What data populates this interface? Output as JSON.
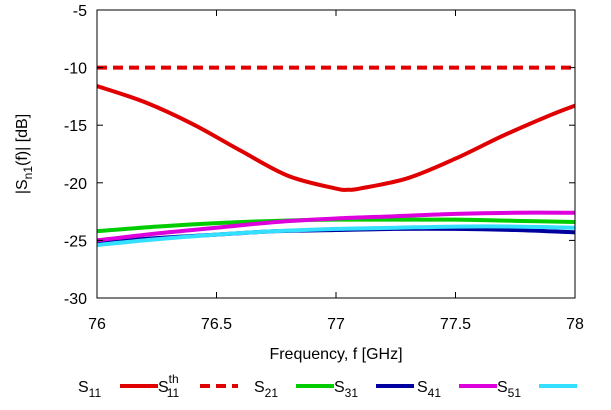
{
  "chart_data": {
    "type": "line",
    "title": "",
    "xlabel": "Frequency, f [GHz]",
    "ylabel": {
      "base": "|S",
      "sub": "n1",
      "rest": "(f)| [dB]"
    },
    "xlim": [
      76,
      78
    ],
    "ylim": [
      -30,
      -5
    ],
    "xticks": [
      76,
      76.5,
      77,
      77.5,
      78
    ],
    "xtick_labels": [
      "76",
      "76.5",
      "77",
      "77.5",
      "78"
    ],
    "yticks": [
      -30,
      -25,
      -20,
      -15,
      -10,
      -5
    ],
    "ytick_labels": [
      "-30",
      "-25",
      "-20",
      "-15",
      "-10",
      "-5"
    ],
    "grid": false,
    "legend_position": "bottom",
    "series": [
      {
        "name": "S11",
        "label_base": "S",
        "label_sub": "11",
        "label_sup": "",
        "color": "#e00000",
        "dash": "solid",
        "x": [
          76,
          76.2,
          76.4,
          76.6,
          76.8,
          77.0,
          77.05,
          77.1,
          77.3,
          77.5,
          77.7,
          77.9,
          78
        ],
        "y": [
          -11.6,
          -13.0,
          -14.9,
          -17.2,
          -19.4,
          -20.5,
          -20.6,
          -20.5,
          -19.6,
          -17.9,
          -15.9,
          -14.1,
          -13.3
        ]
      },
      {
        "name": "S11th",
        "label_base": "S",
        "label_sub": "11",
        "label_sup": "th",
        "color": "#e00000",
        "dash": "dashed",
        "x": [
          76,
          78
        ],
        "y": [
          -10,
          -10
        ]
      },
      {
        "name": "S21",
        "label_base": "S",
        "label_sub": "21",
        "label_sup": "",
        "color": "#00cc00",
        "dash": "solid",
        "x": [
          76,
          76.25,
          76.5,
          76.75,
          77,
          77.25,
          77.5,
          77.75,
          78
        ],
        "y": [
          -24.2,
          -23.8,
          -23.5,
          -23.3,
          -23.2,
          -23.2,
          -23.2,
          -23.3,
          -23.4
        ]
      },
      {
        "name": "S31",
        "label_base": "S",
        "label_sub": "31",
        "label_sup": "",
        "color": "#00009e",
        "dash": "solid",
        "x": [
          76,
          76.25,
          76.5,
          76.75,
          77,
          77.25,
          77.5,
          77.75,
          78
        ],
        "y": [
          -25.2,
          -24.8,
          -24.5,
          -24.2,
          -24.1,
          -24.0,
          -24.0,
          -24.1,
          -24.3
        ]
      },
      {
        "name": "S41",
        "label_base": "S",
        "label_sub": "41",
        "label_sup": "",
        "color": "#dd00dd",
        "dash": "solid",
        "x": [
          76,
          76.25,
          76.5,
          76.75,
          77,
          77.25,
          77.5,
          77.75,
          78
        ],
        "y": [
          -25.0,
          -24.4,
          -23.9,
          -23.4,
          -23.1,
          -22.9,
          -22.7,
          -22.6,
          -22.6
        ]
      },
      {
        "name": "S51",
        "label_base": "S",
        "label_sub": "51",
        "label_sup": "",
        "color": "#33e0ff",
        "dash": "solid",
        "x": [
          76,
          76.25,
          76.5,
          76.75,
          77,
          77.25,
          77.5,
          77.75,
          78
        ],
        "y": [
          -25.4,
          -24.9,
          -24.5,
          -24.2,
          -24.0,
          -23.9,
          -23.8,
          -23.8,
          -23.9
        ]
      }
    ]
  }
}
